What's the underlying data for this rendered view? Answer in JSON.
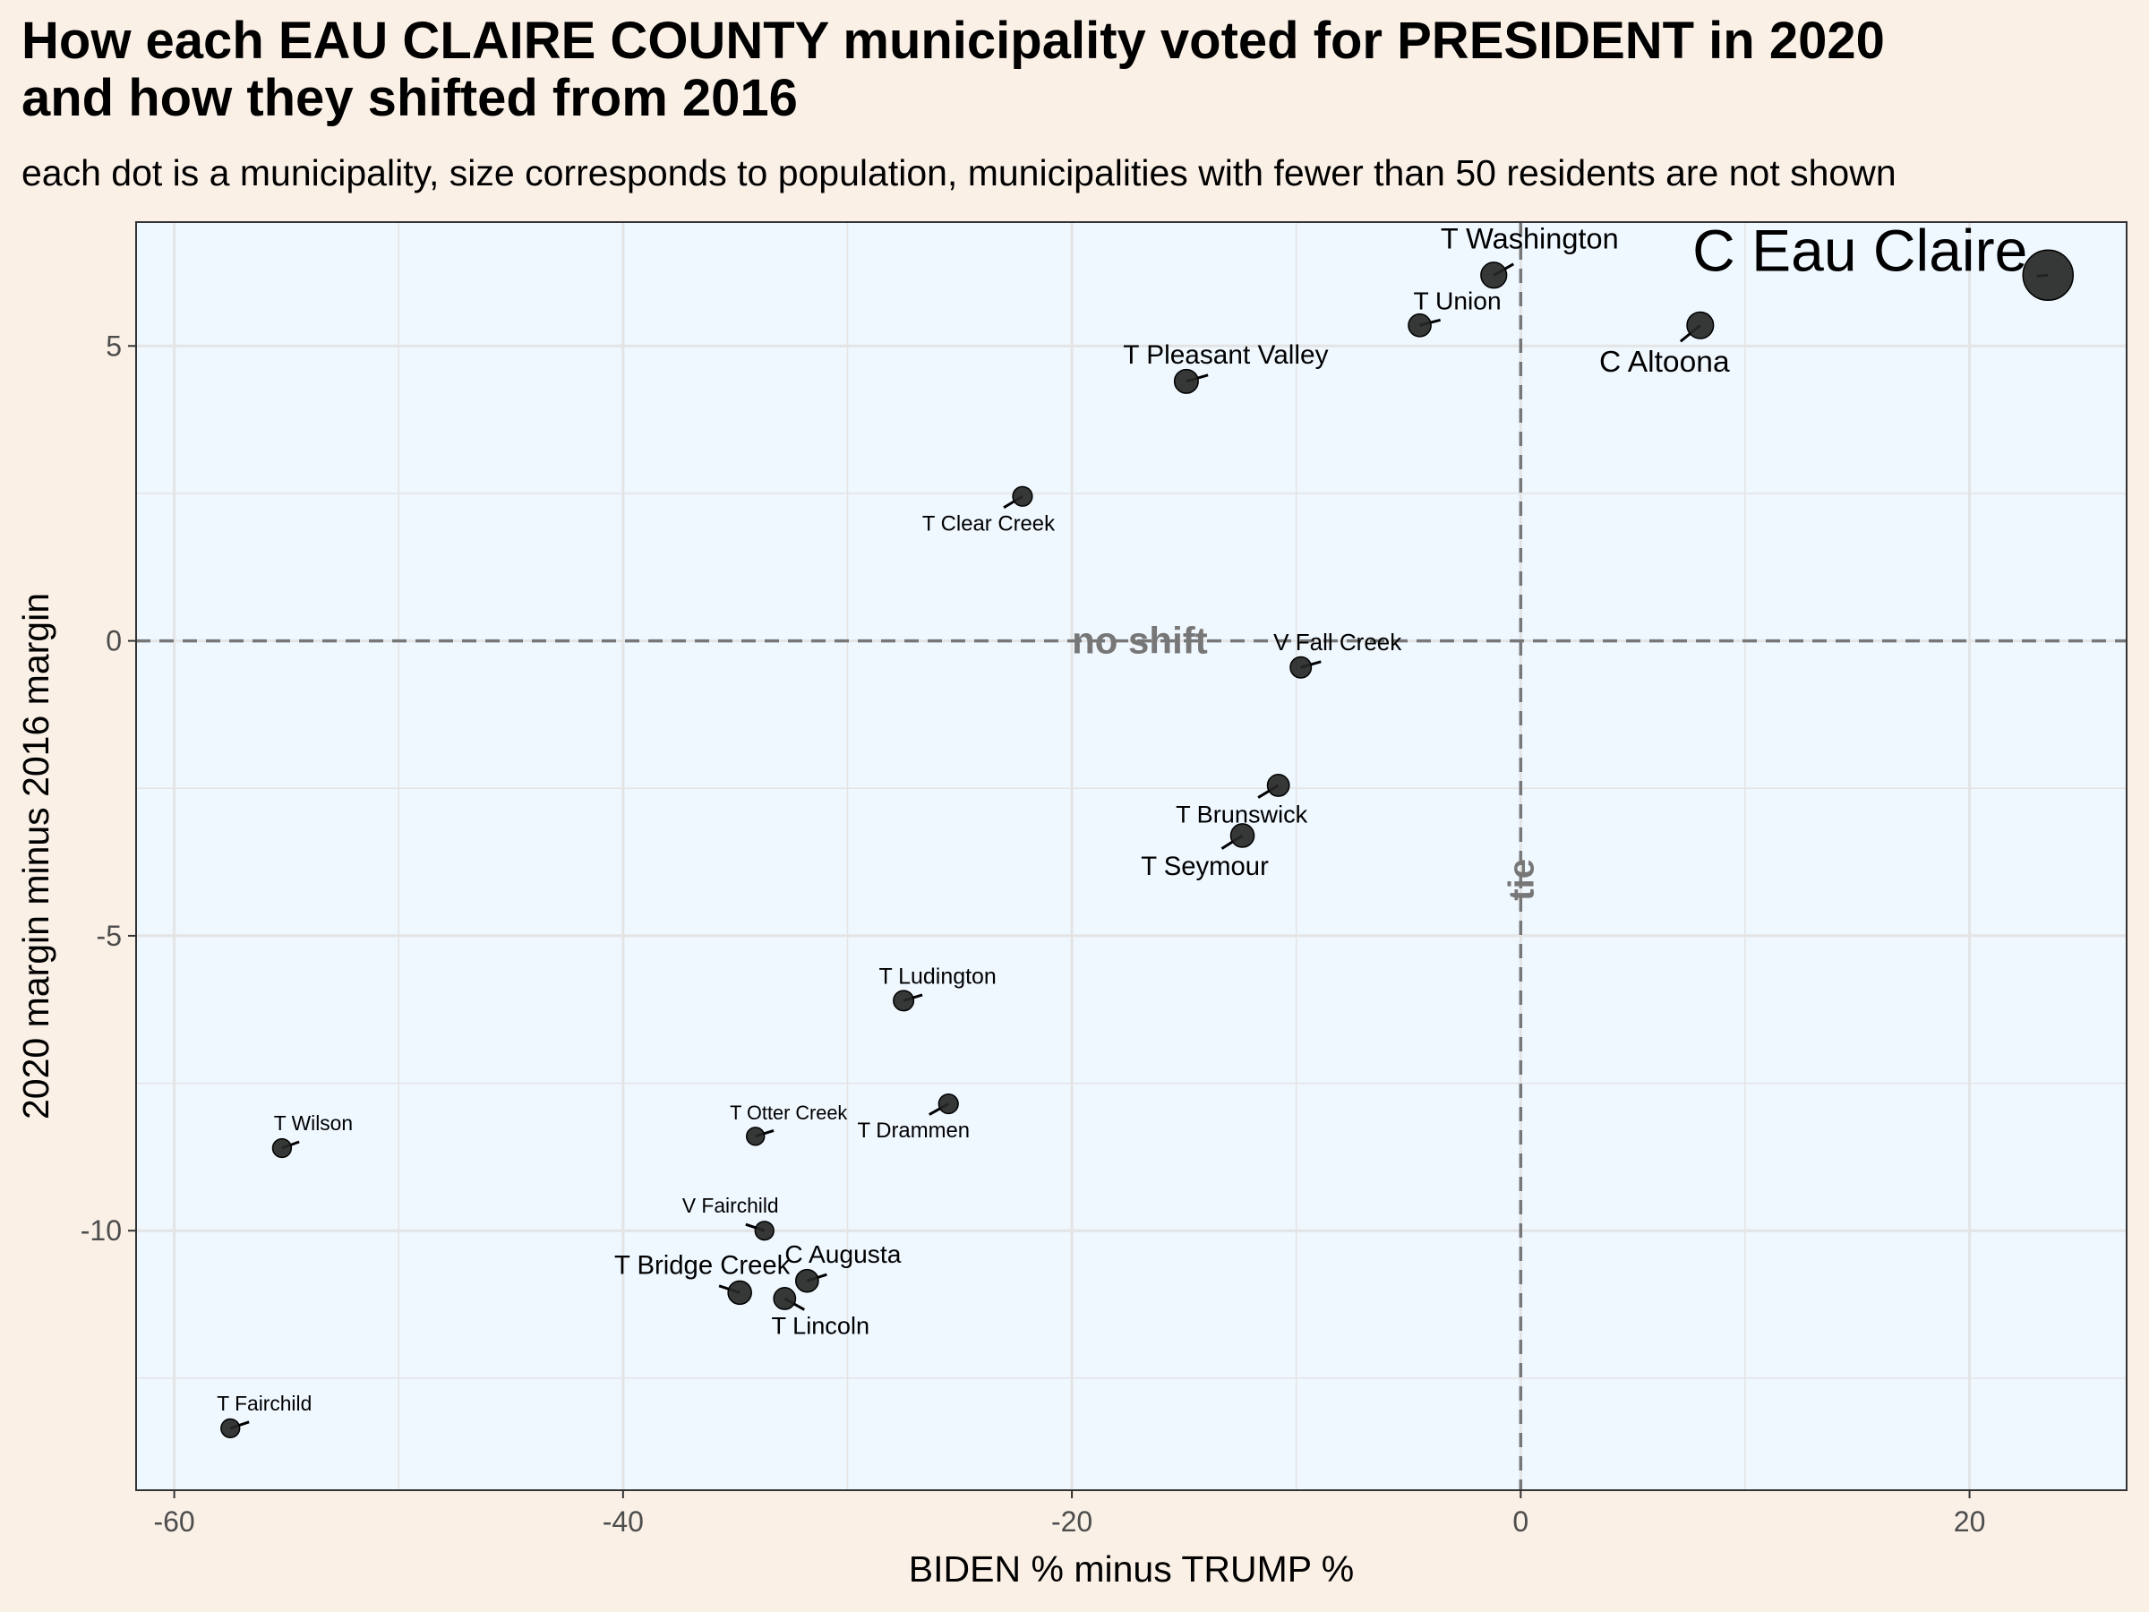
{
  "title_line1": "How each EAU CLAIRE COUNTY municipality voted for PRESIDENT in 2020",
  "title_line2": "and how they shifted from 2016",
  "subtitle": "each dot is a municipality, size corresponds to population, municipalities with fewer than 50 residents are not shown",
  "colors": {
    "page_bg": "#faf0e6",
    "panel_bg": "#eff7ff",
    "grid": "#e4e4e4",
    "dot": "#262626",
    "reference_line": "#777777",
    "text": "#000000"
  },
  "chart_data": {
    "type": "scatter",
    "xlabel": "BIDEN % minus TRUMP %",
    "ylabel": "2020 margin minus 2016 margin",
    "xlim": [
      -61.7,
      27.0
    ],
    "ylim": [
      -14.4,
      7.1
    ],
    "xticks": [
      -60,
      -40,
      -20,
      0,
      20
    ],
    "xtick_labels": [
      "-60",
      "-40",
      "-20",
      "0",
      "20"
    ],
    "yticks": [
      -10,
      -5,
      0,
      5
    ],
    "ytick_labels": [
      "-10",
      "-5",
      "0",
      "5"
    ],
    "grid": true,
    "reference_lines": [
      {
        "axis": "y",
        "value": 0,
        "label": "no shift"
      },
      {
        "axis": "x",
        "value": 0,
        "label": "tie"
      }
    ],
    "points": [
      {
        "name": "C Eau Claire",
        "x": 23.5,
        "y": 6.2,
        "size": 1.0
      },
      {
        "name": "T Washington",
        "x": -1.2,
        "y": 6.2,
        "size": 0.38
      },
      {
        "name": "C Altoona",
        "x": 8.0,
        "y": 5.35,
        "size": 0.4
      },
      {
        "name": "T Union",
        "x": -4.5,
        "y": 5.35,
        "size": 0.3
      },
      {
        "name": "T Pleasant Valley",
        "x": -14.9,
        "y": 4.4,
        "size": 0.33
      },
      {
        "name": "T Clear Creek",
        "x": -22.2,
        "y": 2.45,
        "size": 0.22
      },
      {
        "name": "V Fall Creek",
        "x": -9.8,
        "y": -0.45,
        "size": 0.26
      },
      {
        "name": "T Brunswick",
        "x": -10.8,
        "y": -2.45,
        "size": 0.28
      },
      {
        "name": "T Seymour",
        "x": -12.4,
        "y": -3.3,
        "size": 0.32
      },
      {
        "name": "T Ludington",
        "x": -27.5,
        "y": -6.1,
        "size": 0.24
      },
      {
        "name": "T Drammen",
        "x": -25.5,
        "y": -7.85,
        "size": 0.22
      },
      {
        "name": "T Wilson",
        "x": -55.2,
        "y": -8.6,
        "size": 0.2
      },
      {
        "name": "T Otter Creek",
        "x": -34.1,
        "y": -8.4,
        "size": 0.18
      },
      {
        "name": "V Fairchild",
        "x": -33.7,
        "y": -10.0,
        "size": 0.2
      },
      {
        "name": "C Augusta",
        "x": -31.8,
        "y": -10.85,
        "size": 0.3
      },
      {
        "name": "T Bridge Creek",
        "x": -34.8,
        "y": -11.05,
        "size": 0.32
      },
      {
        "name": "T Lincoln",
        "x": -32.8,
        "y": -11.15,
        "size": 0.28
      },
      {
        "name": "T Fairchild",
        "x": -57.5,
        "y": -13.35,
        "size": 0.2
      }
    ]
  }
}
